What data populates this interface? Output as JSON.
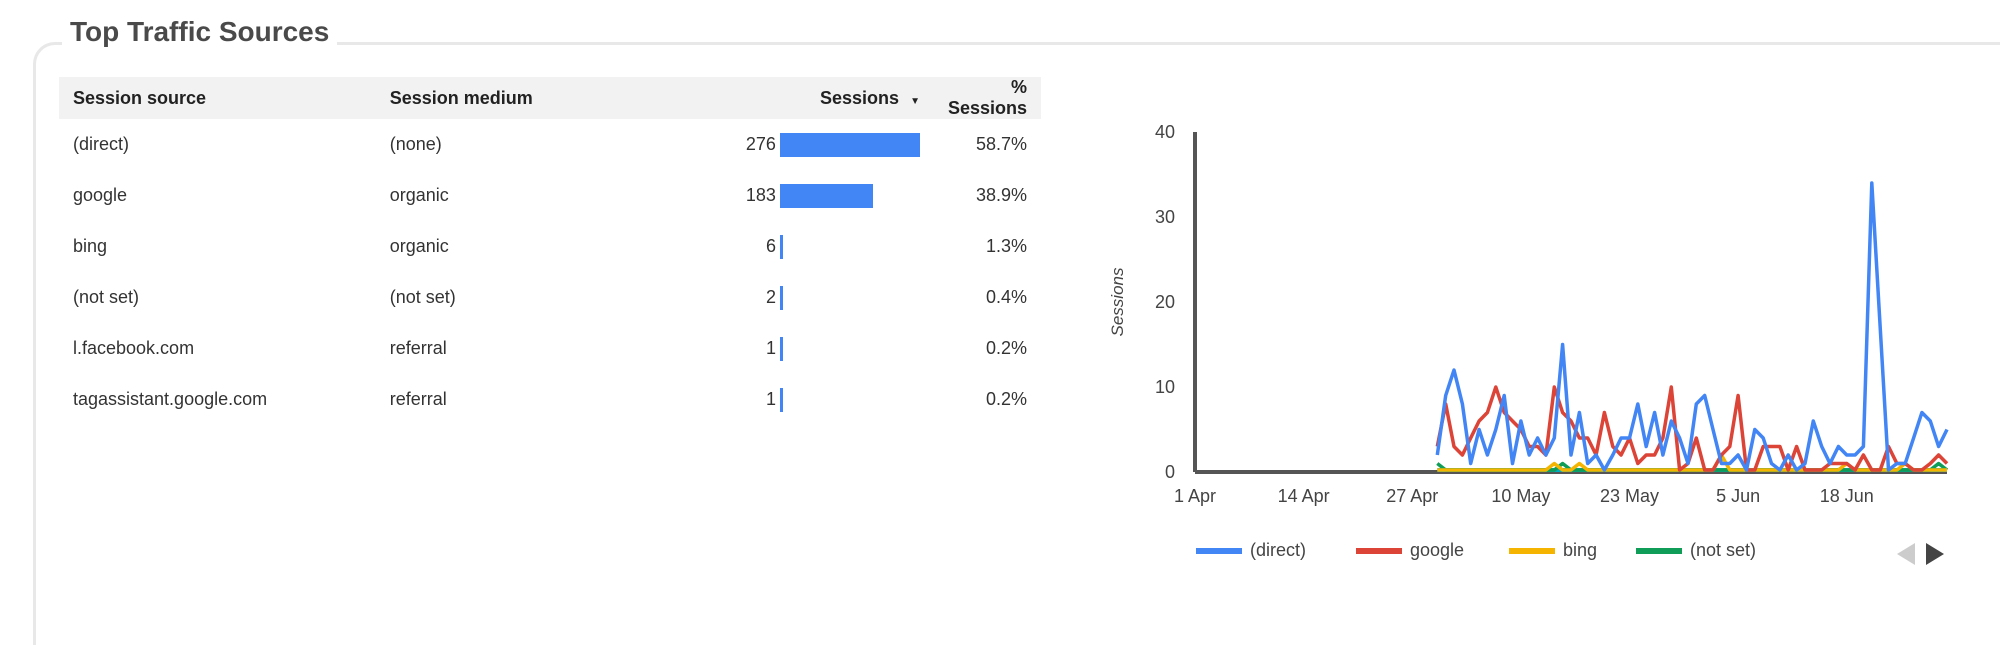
{
  "title": "Top Traffic Sources",
  "table": {
    "headers": [
      "Session source",
      "Session medium",
      "Sessions",
      "% Sessions"
    ],
    "sort_icon": "sort-desc-icon",
    "rows": [
      {
        "source": "(direct)",
        "medium": "(none)",
        "sessions": "276",
        "value": 276,
        "pct": "58.7%"
      },
      {
        "source": "google",
        "medium": "organic",
        "sessions": "183",
        "value": 183,
        "pct": "38.9%"
      },
      {
        "source": "bing",
        "medium": "organic",
        "sessions": "6",
        "value": 6,
        "pct": "1.3%"
      },
      {
        "source": "(not set)",
        "medium": "(not set)",
        "sessions": "2",
        "value": 2,
        "pct": "0.4%"
      },
      {
        "source": "l.facebook.com",
        "medium": "referral",
        "sessions": "1",
        "value": 1,
        "pct": "0.2%"
      },
      {
        "source": "tagassistant.google.com",
        "medium": "referral",
        "sessions": "1",
        "value": 1,
        "pct": "0.2%"
      }
    ]
  },
  "chart_data": {
    "type": "line",
    "ylabel": "Sessions",
    "xlabel": "",
    "ylim": [
      0,
      40
    ],
    "yticks": [
      "0",
      "10",
      "20",
      "30",
      "40"
    ],
    "xticks": [
      "1 Apr",
      "14 Apr",
      "27 Apr",
      "10 May",
      "23 May",
      "5 Jun",
      "18 Jun"
    ],
    "x_range_days": [
      0,
      90
    ],
    "data_start_day": 29,
    "series": [
      {
        "name": "(direct)",
        "color": "#4285f4",
        "values": [
          2,
          9,
          12,
          8,
          1,
          5,
          2,
          5,
          9,
          1,
          6,
          2,
          4,
          2,
          4,
          15,
          2,
          7,
          1,
          2,
          0,
          2,
          4,
          4,
          8,
          3,
          7,
          2,
          6,
          4,
          1,
          8,
          9,
          5,
          1,
          1,
          2,
          0,
          5,
          4,
          1,
          0,
          2,
          0,
          1,
          6,
          3,
          1,
          3,
          2,
          2,
          3,
          34,
          17,
          0,
          1,
          1,
          4,
          7,
          6,
          3,
          5
        ]
      },
      {
        "name": "google",
        "color": "#db4437",
        "values": [
          3,
          8,
          3,
          2,
          4,
          6,
          7,
          10,
          7,
          6,
          5,
          3,
          3,
          2,
          10,
          7,
          6,
          4,
          4,
          2,
          7,
          3,
          2,
          4,
          1,
          2,
          2,
          4,
          10,
          0,
          1,
          4,
          0,
          0,
          2,
          3,
          9,
          0,
          0,
          3,
          3,
          3,
          0,
          3,
          0,
          0,
          0,
          1,
          1,
          1,
          0,
          2,
          0,
          0,
          3,
          1,
          1,
          0,
          0,
          1,
          2,
          1
        ]
      },
      {
        "name": "bing",
        "color": "#f4b400",
        "values": [
          0,
          0,
          0,
          0,
          0,
          0,
          0,
          0,
          0,
          0,
          0,
          0,
          0,
          0,
          1,
          0,
          0,
          1,
          0,
          0,
          0,
          0,
          0,
          0,
          0,
          0,
          0,
          0,
          0,
          0,
          0,
          0,
          0,
          0,
          2,
          0,
          0,
          0,
          0,
          0,
          0,
          0,
          0,
          0,
          0,
          0,
          0,
          0,
          0,
          1,
          0,
          0,
          0,
          0,
          0,
          0,
          1,
          0,
          0,
          0,
          0,
          0
        ]
      },
      {
        "name": "(not set)",
        "color": "#0f9d58",
        "values": [
          1,
          0,
          0,
          0,
          0,
          0,
          0,
          0,
          0,
          0,
          0,
          0,
          0,
          0,
          0,
          1,
          0,
          0,
          0,
          0,
          0,
          0,
          0,
          0,
          0,
          0,
          0,
          0,
          0,
          0,
          0,
          0,
          0,
          0,
          0,
          0,
          0,
          0,
          0,
          0,
          0,
          0,
          0,
          0,
          0,
          0,
          0,
          0,
          0,
          0,
          0,
          0,
          0,
          0,
          0,
          0,
          0,
          0,
          0,
          0,
          1,
          0
        ]
      }
    ],
    "legend": "bottom"
  }
}
